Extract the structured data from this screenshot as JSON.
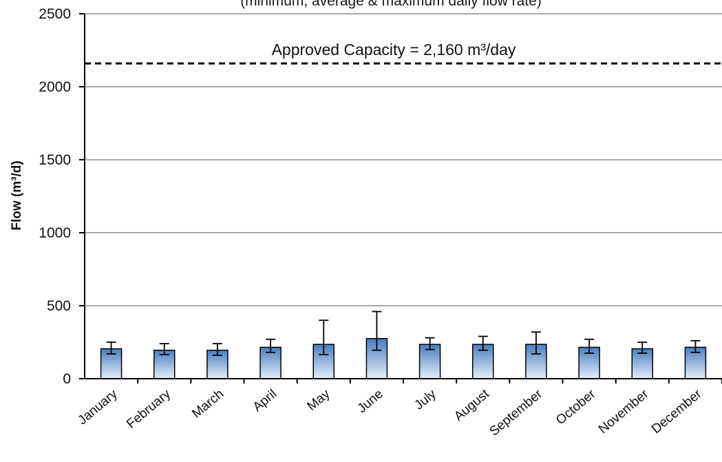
{
  "chart_data": {
    "type": "bar",
    "title": "(minimum, average & maximum daily flow rate)",
    "ylabel": "Flow (m³/d)",
    "xlabel": "",
    "ylim": [
      0,
      2500
    ],
    "yticks": [
      0,
      500,
      1000,
      1500,
      2000,
      2500
    ],
    "grid": true,
    "categories": [
      "January",
      "February",
      "March",
      "April",
      "May",
      "June",
      "July",
      "August",
      "September",
      "October",
      "November",
      "December"
    ],
    "series": [
      {
        "values": [
          205,
          195,
          195,
          215,
          235,
          275,
          235,
          235,
          235,
          215,
          205,
          215
        ],
        "min": [
          170,
          165,
          160,
          180,
          165,
          195,
          200,
          195,
          170,
          175,
          175,
          180
        ],
        "max": [
          250,
          240,
          240,
          270,
          400,
          460,
          280,
          290,
          320,
          270,
          250,
          260
        ]
      }
    ],
    "reference_line": {
      "value": 2160,
      "label": "Approved Capacity = 2,160  m³/day"
    },
    "colors": {
      "bar_top": "#4a7ebf",
      "bar_bottom": "#e6eef9",
      "grid": "#8c8c8c",
      "axis": "#000000"
    }
  }
}
